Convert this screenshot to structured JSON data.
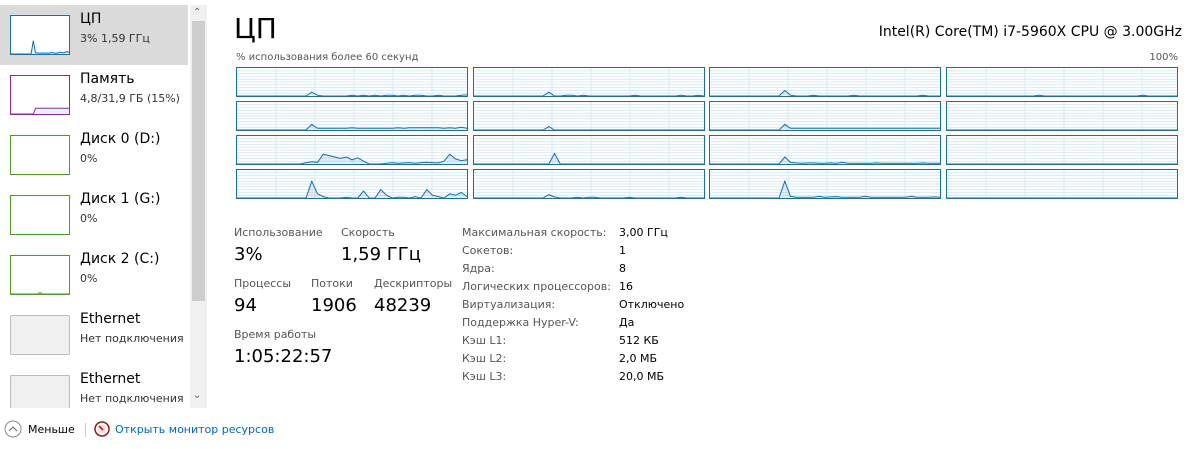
{
  "sidebar": {
    "items": [
      {
        "name": "ЦП",
        "sub": "3% 1,59 ГГц",
        "color": "#1a6ea3",
        "selected": true,
        "trace": [
          0,
          0,
          0,
          0,
          0,
          0,
          0,
          0,
          0,
          0,
          35,
          3,
          3,
          2,
          3,
          2,
          3,
          2,
          4,
          3,
          2,
          3,
          5,
          3,
          4,
          6,
          5
        ]
      },
      {
        "name": "Память",
        "sub": "4,8/31,9 ГБ (15%)",
        "color": "#8b2a9f",
        "trace": [
          0,
          0,
          0,
          0,
          0,
          0,
          0,
          0,
          0,
          0,
          0,
          15,
          15,
          15,
          15,
          15,
          15,
          15,
          15,
          15,
          15,
          15,
          15,
          15,
          15,
          15,
          15
        ]
      },
      {
        "name": "Диск 0 (D:)",
        "sub": "0%",
        "color": "#4d9a1e"
      },
      {
        "name": "Диск 1 (G:)",
        "sub": "0%",
        "color": "#4d9a1e"
      },
      {
        "name": "Диск 2 (C:)",
        "sub": "0%",
        "color": "#4d9a1e",
        "trace": [
          0,
          0,
          0,
          0,
          0,
          0,
          0,
          0,
          0,
          0,
          0,
          0,
          0,
          4,
          0,
          0,
          0,
          0,
          0,
          0,
          0,
          0,
          0,
          0,
          0,
          0,
          0
        ]
      },
      {
        "name": "Ethernet",
        "sub": "Нет подключения",
        "color": "#bcbcbc"
      },
      {
        "name": "Ethernet",
        "sub": "Нет подключения",
        "color": "#bcbcbc"
      }
    ]
  },
  "header": {
    "title": "ЦП",
    "cpu_model": "Intel(R) Core(TM) i7-5960X CPU @ 3.00GHz",
    "graph_caption": "% использования более 60 секунд",
    "max_label": "100%"
  },
  "cores": [
    [
      0,
      0,
      0,
      0,
      0,
      0,
      0,
      0,
      0,
      0,
      0,
      0,
      0,
      14,
      3,
      0,
      0,
      0,
      0,
      0,
      3,
      0,
      3,
      0,
      3,
      0,
      3,
      3,
      0,
      3,
      0,
      3,
      3,
      0,
      0,
      3,
      0,
      0,
      0,
      3,
      4
    ],
    [
      0,
      0,
      0,
      0,
      0,
      0,
      0,
      0,
      0,
      0,
      0,
      0,
      0,
      14,
      0,
      0,
      3,
      3,
      0,
      3,
      0,
      0,
      0,
      0,
      0,
      0,
      0,
      0,
      3,
      0,
      0,
      0,
      0,
      0,
      0,
      0,
      3,
      0,
      0,
      3,
      0
    ],
    [
      0,
      0,
      0,
      0,
      0,
      0,
      0,
      0,
      0,
      0,
      0,
      0,
      0,
      20,
      3,
      0,
      0,
      0,
      3,
      0,
      0,
      0,
      0,
      0,
      0,
      3,
      0,
      0,
      0,
      0,
      0,
      0,
      0,
      0,
      0,
      0,
      0,
      3,
      0,
      0,
      0
    ],
    [
      0,
      0,
      0,
      0,
      0,
      0,
      0,
      0,
      0,
      0,
      0,
      0,
      0,
      0,
      0,
      0,
      3,
      0,
      0,
      0,
      0,
      0,
      0,
      0,
      0,
      0,
      0,
      0,
      0,
      0,
      0,
      0,
      0,
      0,
      3,
      0,
      0,
      0,
      0,
      0,
      0
    ],
    [
      0,
      0,
      0,
      0,
      0,
      0,
      0,
      0,
      0,
      0,
      0,
      0,
      0,
      20,
      6,
      6,
      6,
      6,
      6,
      6,
      8,
      6,
      6,
      6,
      6,
      6,
      6,
      6,
      8,
      6,
      8,
      8,
      8,
      8,
      8,
      8,
      6,
      8,
      6,
      10,
      6
    ],
    [
      0,
      0,
      0,
      0,
      0,
      0,
      0,
      0,
      0,
      0,
      0,
      0,
      0,
      12,
      0,
      0,
      0,
      0,
      0,
      0,
      0,
      0,
      0,
      0,
      0,
      0,
      0,
      0,
      0,
      0,
      0,
      0,
      0,
      0,
      0,
      0,
      0,
      0,
      0,
      0,
      0
    ],
    [
      0,
      0,
      0,
      0,
      0,
      0,
      0,
      0,
      0,
      0,
      0,
      0,
      0,
      20,
      6,
      6,
      6,
      6,
      6,
      6,
      6,
      6,
      6,
      6,
      6,
      6,
      6,
      6,
      6,
      6,
      6,
      6,
      6,
      6,
      6,
      6,
      6,
      6,
      6,
      6,
      6
    ],
    [
      0,
      0,
      0,
      0,
      0,
      0,
      0,
      0,
      0,
      0,
      0,
      0,
      0,
      0,
      0,
      0,
      0,
      0,
      0,
      0,
      0,
      0,
      0,
      0,
      0,
      0,
      0,
      0,
      0,
      0,
      0,
      0,
      0,
      0,
      0,
      0,
      0,
      0,
      0,
      0,
      0
    ],
    [
      0,
      0,
      0,
      0,
      0,
      0,
      0,
      0,
      0,
      0,
      0,
      0,
      5,
      8,
      6,
      35,
      30,
      25,
      20,
      25,
      15,
      22,
      10,
      0,
      0,
      0,
      3,
      5,
      3,
      4,
      5,
      3,
      5,
      6,
      5,
      4,
      10,
      35,
      18,
      12,
      15
    ],
    [
      0,
      0,
      0,
      0,
      0,
      0,
      0,
      0,
      0,
      0,
      0,
      0,
      0,
      0,
      38,
      0,
      0,
      0,
      0,
      0,
      0,
      0,
      0,
      0,
      0,
      0,
      0,
      0,
      0,
      0,
      0,
      0,
      0,
      0,
      0,
      0,
      0,
      0,
      0,
      0,
      0
    ],
    [
      0,
      0,
      0,
      0,
      0,
      0,
      0,
      0,
      0,
      0,
      0,
      0,
      0,
      25,
      6,
      4,
      3,
      4,
      4,
      3,
      3,
      4,
      3,
      6,
      3,
      3,
      3,
      3,
      3,
      4,
      3,
      3,
      3,
      3,
      3,
      3,
      3,
      4,
      3,
      3,
      3
    ],
    [
      0,
      0,
      0,
      0,
      0,
      0,
      0,
      0,
      0,
      0,
      0,
      0,
      0,
      0,
      0,
      0,
      0,
      0,
      0,
      0,
      0,
      0,
      0,
      0,
      0,
      0,
      0,
      0,
      0,
      0,
      0,
      0,
      0,
      0,
      0,
      0,
      0,
      0,
      0,
      0,
      0
    ],
    [
      0,
      0,
      0,
      0,
      0,
      0,
      0,
      0,
      0,
      0,
      0,
      0,
      0,
      60,
      15,
      5,
      0,
      0,
      0,
      3,
      0,
      0,
      25,
      0,
      0,
      30,
      10,
      0,
      3,
      3,
      0,
      5,
      0,
      30,
      10,
      5,
      0,
      15,
      10,
      20,
      5
    ],
    [
      0,
      0,
      0,
      0,
      0,
      0,
      0,
      0,
      0,
      0,
      0,
      0,
      0,
      12,
      4,
      0,
      0,
      0,
      3,
      0,
      3,
      3,
      0,
      0,
      0,
      0,
      0,
      3,
      0,
      0,
      0,
      0,
      0,
      0,
      0,
      0,
      3,
      0,
      0,
      0,
      0
    ],
    [
      0,
      0,
      0,
      0,
      0,
      0,
      0,
      0,
      0,
      0,
      0,
      0,
      0,
      60,
      6,
      3,
      3,
      3,
      3,
      6,
      3,
      4,
      5,
      3,
      3,
      3,
      3,
      6,
      3,
      3,
      3,
      3,
      3,
      3,
      3,
      6,
      3,
      3,
      3,
      4,
      3
    ],
    [
      0,
      0,
      0,
      0,
      0,
      0,
      0,
      0,
      0,
      0,
      0,
      0,
      0,
      0,
      0,
      0,
      0,
      0,
      0,
      0,
      0,
      0,
      0,
      0,
      0,
      0,
      0,
      0,
      0,
      0,
      0,
      0,
      0,
      0,
      0,
      0,
      0,
      0,
      0,
      0,
      0
    ]
  ],
  "stats": {
    "usage_label": "Использование",
    "usage": "3%",
    "speed_label": "Скорость",
    "speed": "1,59 ГГц",
    "processes_label": "Процессы",
    "processes": "94",
    "threads_label": "Потоки",
    "threads": "1906",
    "handles_label": "Дескрипторы",
    "handles": "48239",
    "uptime_label": "Время работы",
    "uptime": "1:05:22:57"
  },
  "specs": [
    {
      "k": "Максимальная скорость:",
      "v": "3,00 ГГц"
    },
    {
      "k": "Сокетов:",
      "v": "1"
    },
    {
      "k": "Ядра:",
      "v": "8"
    },
    {
      "k": "Логических процессоров:",
      "v": "16"
    },
    {
      "k": "Виртуализация:",
      "v": "Отключено"
    },
    {
      "k": "Поддержка Hyper-V:",
      "v": "Да"
    },
    {
      "k": "Кэш L1:",
      "v": "512 КБ"
    },
    {
      "k": "Кэш L2:",
      "v": "2,0 МБ"
    },
    {
      "k": "Кэш L3:",
      "v": "20,0 МБ"
    }
  ],
  "footer": {
    "less": "Меньше",
    "resmon": "Открыть монитор ресурсов"
  },
  "colors": {
    "cpu": "#1a6ea3",
    "grid": "#d9eaf4",
    "link": "#0066cc"
  }
}
